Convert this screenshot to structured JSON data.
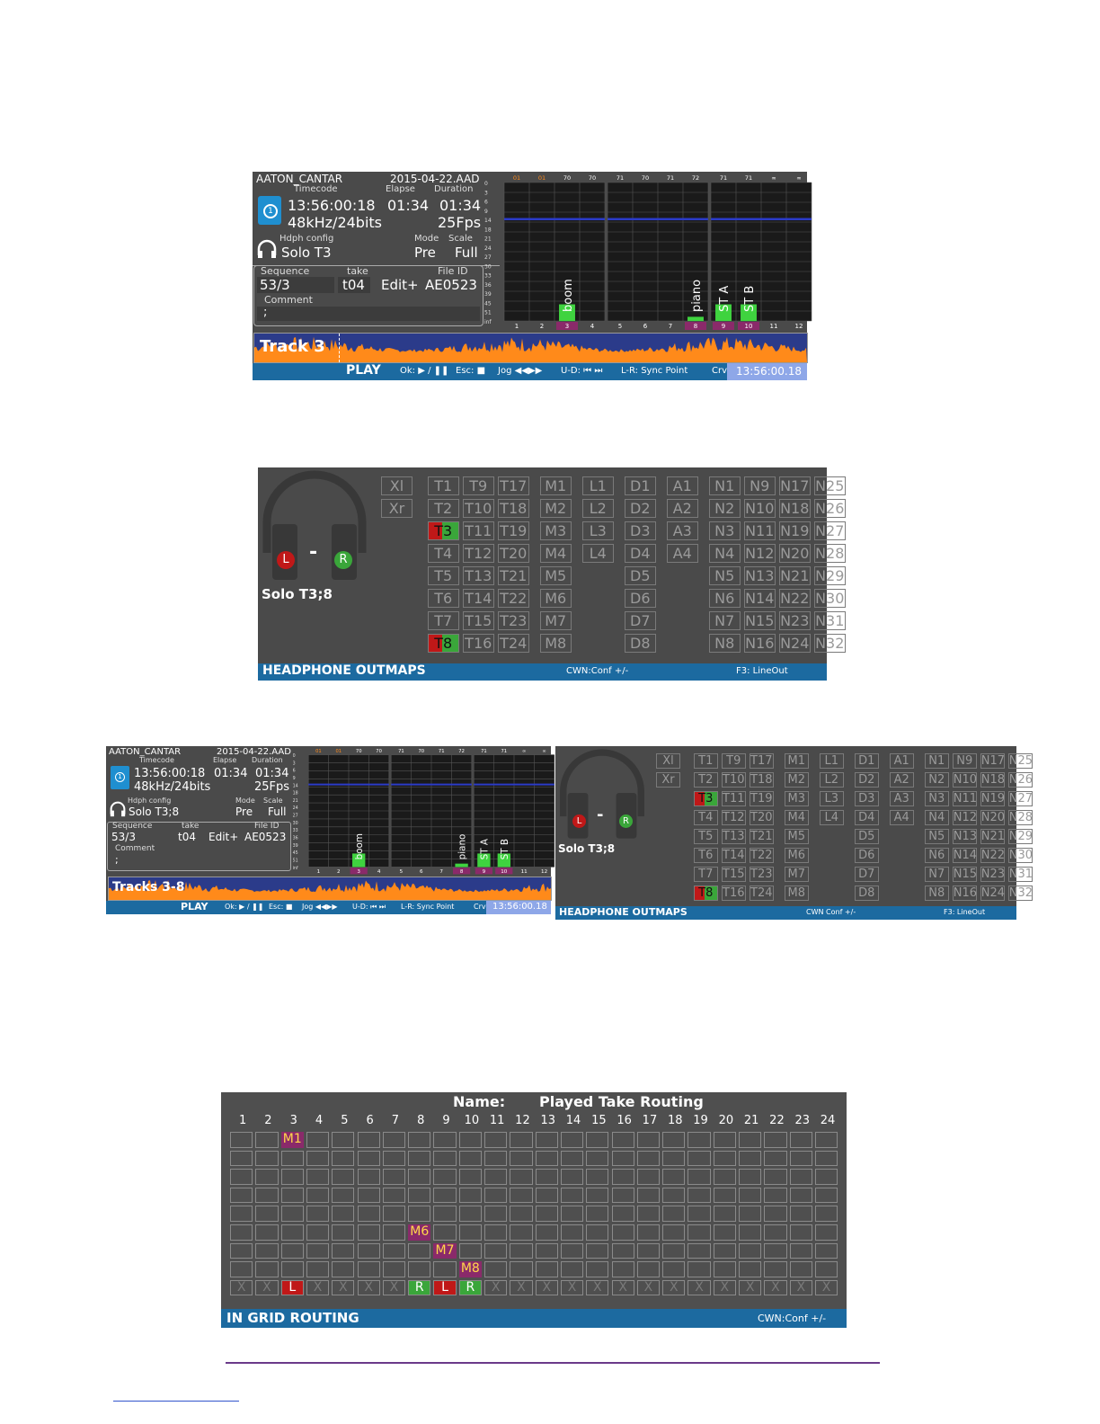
{
  "play": {
    "device": "AATON_CANTAR",
    "date": "2015-04-22.AAD",
    "tc_label": "Timecode",
    "elapse_label": "Elapse",
    "duration_label": "Duration",
    "timecode": "13:56:00:18",
    "elapse": "01:34",
    "duration": "01:34",
    "format": "48kHz/24bits",
    "fps": "25Fps",
    "hdph_label": "Hdph config",
    "mode_label": "Mode",
    "scale_label": "Scale",
    "hdph": "Solo T3",
    "mode": "Pre",
    "scale": "Full",
    "sequence_label": "Sequence",
    "take_label": "take",
    "fileid_label": "File ID",
    "sequence": "53/3",
    "take": "t04",
    "edit": "Edit+",
    "fileid": "AE0523",
    "comment_label": "Comment",
    "comment": ";",
    "track_label": "Track 3",
    "bar_title": "PLAY",
    "ok_hint": "Ok:",
    "esc_hint": "Esc:",
    "jog_hint": "Jog",
    "ud_hint": "U-D:",
    "lr_hint": "L-R: Sync Point",
    "crv": "Crv",
    "tc_readout": "13:56:00.18",
    "peak_values": [
      "01",
      "01",
      "70",
      "70",
      "71",
      "70",
      "71",
      "72",
      "71",
      "71",
      "∞",
      "∞"
    ],
    "scale_marks": [
      "0",
      "3",
      "6",
      "9",
      "14",
      "18",
      "21",
      "24",
      "27",
      "30",
      "33",
      "36",
      "39",
      "45",
      "51",
      "inf"
    ],
    "channel_numbers": [
      "1",
      "2",
      "3",
      "4",
      "5",
      "6",
      "7",
      "8",
      "9",
      "10",
      "11",
      "12"
    ],
    "channel_names": {
      "3": "boom",
      "8": "piano",
      "9": "ST A",
      "10": "ST B"
    },
    "meter_levels": [
      0,
      0,
      0.12,
      0,
      0,
      0,
      0,
      0.03,
      0.12,
      0.12,
      0,
      0
    ],
    "active_channels": [
      "3",
      "8",
      "9",
      "10"
    ]
  },
  "play_small": {
    "track_label": "Tracks 3-8",
    "hdph": "Solo T3;8",
    "crv": "Crv",
    "lr_hint": "L-R: Sync Point"
  },
  "outmaps": {
    "x_buttons": [
      "Xl",
      "Xr"
    ],
    "t_cols": [
      [
        "T1",
        "T2",
        "T3",
        "T4",
        "T5",
        "T6",
        "T7",
        "T8"
      ],
      [
        "T9",
        "T10",
        "T11",
        "T12",
        "T13",
        "T14",
        "T15",
        "T16"
      ],
      [
        "T17",
        "T18",
        "T19",
        "T20",
        "T21",
        "T22",
        "T23",
        "T24"
      ]
    ],
    "m_col": [
      "M1",
      "M2",
      "M3",
      "M4",
      "M5",
      "M6",
      "M7",
      "M8"
    ],
    "l_col": [
      "L1",
      "L2",
      "L3",
      "L4"
    ],
    "d_col": [
      "D1",
      "D2",
      "D3",
      "D4",
      "D5",
      "D6",
      "D7",
      "D8"
    ],
    "a_col": [
      "A1",
      "A2",
      "A3",
      "A4"
    ],
    "n_cols": [
      [
        "N1",
        "N2",
        "N3",
        "N4",
        "N5",
        "N6",
        "N7",
        "N8"
      ],
      [
        "N9",
        "N10",
        "N11",
        "N12",
        "N13",
        "N14",
        "N15",
        "N16"
      ],
      [
        "N17",
        "N18",
        "N19",
        "N20",
        "N21",
        "N22",
        "N23",
        "N24"
      ],
      [
        "N25",
        "N26",
        "N27",
        "N28",
        "N29",
        "N30",
        "N31",
        "N32"
      ]
    ],
    "active": [
      "T3",
      "T8"
    ],
    "left_letter": "L",
    "right_letter": "R",
    "dash": "-",
    "solo": "Solo T3;8",
    "title": "HEADPHONE OUTMAPS",
    "cwn": "CWN:Conf +/-",
    "f3": "F3: LineOut",
    "cwn_small": "CWN Conf +/-",
    "f3_small": "F3: LineOut"
  },
  "grid": {
    "name_label": "Name:",
    "name_value": "Played Take Routing",
    "columns": [
      "1",
      "2",
      "3",
      "4",
      "5",
      "6",
      "7",
      "8",
      "9",
      "10",
      "11",
      "12",
      "13",
      "14",
      "15",
      "16",
      "17",
      "18",
      "19",
      "20",
      "21",
      "22",
      "23",
      "24"
    ],
    "assignments": [
      {
        "col": 3,
        "row": 0,
        "label": "M1"
      },
      {
        "col": 8,
        "row": 5,
        "label": "M6"
      },
      {
        "col": 9,
        "row": 6,
        "label": "M7"
      },
      {
        "col": 10,
        "row": 7,
        "label": "M8"
      }
    ],
    "bottom_row": [
      "X",
      "X",
      "L",
      "X",
      "X",
      "X",
      "X",
      "R",
      "L",
      "R",
      "X",
      "X",
      "X",
      "X",
      "X",
      "X",
      "X",
      "X",
      "X",
      "X",
      "X",
      "X",
      "X",
      "X"
    ],
    "title": "IN GRID ROUTING",
    "cwn": "CWN:Conf +/-"
  },
  "colors": {
    "accent": "#1c6aa0",
    "active": "#3aa63a",
    "red": "#c01818",
    "magenta": "#8a2a6a",
    "meter_green": "#3fd33f",
    "wave": "#ff8a1a",
    "footer_line": "#6a3a8a"
  }
}
